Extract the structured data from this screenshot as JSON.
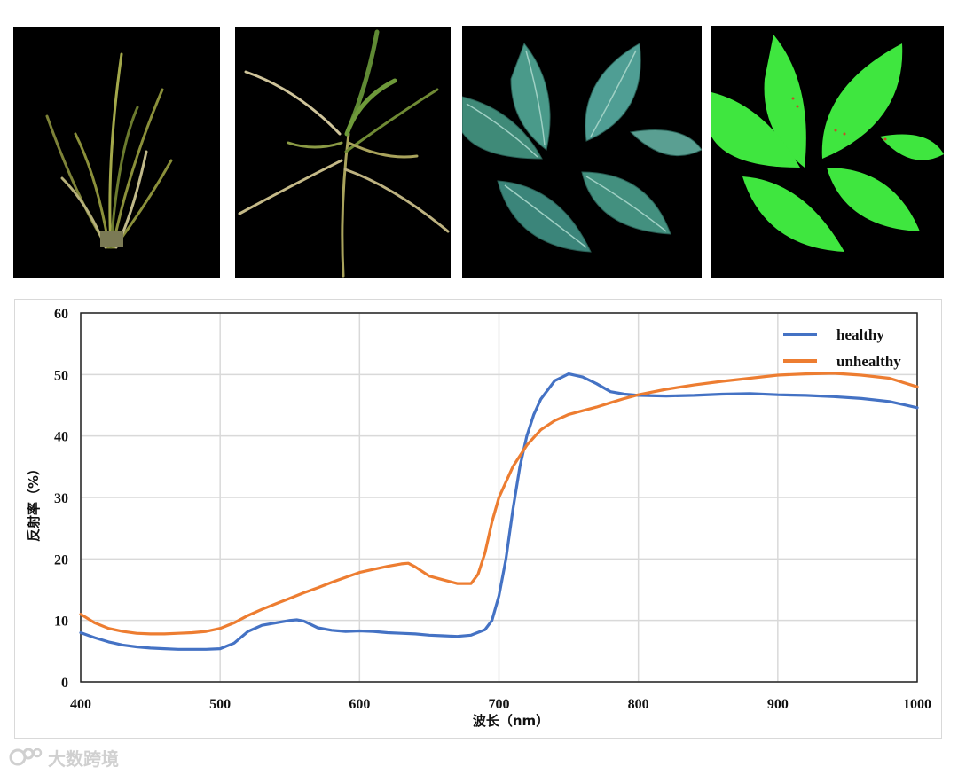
{
  "photos": [
    {
      "name": "rice-plant-healthy"
    },
    {
      "name": "rice-plant-unhealthy"
    },
    {
      "name": "leaves-rgb"
    },
    {
      "name": "leaves-segmented"
    }
  ],
  "watermark": {
    "text": "大数跨境"
  },
  "chart_data": {
    "type": "line",
    "title": "",
    "xlabel": "波长（nm）",
    "ylabel": "反射率（%）",
    "xlim": [
      400,
      1000
    ],
    "ylim": [
      0,
      60
    ],
    "xticks": [
      "400",
      "500",
      "600",
      "700",
      "800",
      "900",
      "1000"
    ],
    "yticks": [
      "0",
      "10",
      "20",
      "30",
      "40",
      "50",
      "60"
    ],
    "grid": true,
    "legend_position": "top-right",
    "series": [
      {
        "name": "healthy",
        "color": "#4472C4",
        "x": [
          400,
          410,
          420,
          430,
          440,
          450,
          460,
          470,
          480,
          490,
          500,
          510,
          520,
          530,
          540,
          550,
          555,
          560,
          570,
          580,
          590,
          600,
          610,
          620,
          630,
          640,
          650,
          660,
          670,
          680,
          690,
          695,
          700,
          705,
          710,
          715,
          720,
          725,
          730,
          740,
          750,
          760,
          770,
          780,
          790,
          800,
          820,
          840,
          860,
          880,
          900,
          920,
          940,
          960,
          980,
          1000
        ],
        "values": [
          8,
          7.2,
          6.5,
          6,
          5.7,
          5.5,
          5.4,
          5.3,
          5.3,
          5.3,
          5.4,
          6.3,
          8.2,
          9.2,
          9.6,
          10,
          10.1,
          9.9,
          8.8,
          8.4,
          8.2,
          8.3,
          8.2,
          8.0,
          7.9,
          7.8,
          7.6,
          7.5,
          7.4,
          7.6,
          8.5,
          10,
          14,
          20,
          28,
          35,
          40,
          43.5,
          46,
          49,
          50.1,
          49.6,
          48.5,
          47.2,
          46.8,
          46.6,
          46.5,
          46.6,
          46.8,
          46.9,
          46.7,
          46.6,
          46.4,
          46.1,
          45.6,
          44.6
        ]
      },
      {
        "name": "unhealthy",
        "color": "#ED7D31",
        "x": [
          400,
          410,
          420,
          430,
          440,
          450,
          460,
          470,
          480,
          490,
          500,
          510,
          520,
          530,
          540,
          550,
          560,
          570,
          580,
          590,
          600,
          610,
          620,
          630,
          635,
          640,
          650,
          660,
          670,
          680,
          685,
          690,
          695,
          700,
          710,
          720,
          730,
          740,
          750,
          760,
          770,
          780,
          790,
          800,
          820,
          840,
          860,
          880,
          900,
          920,
          940,
          960,
          980,
          1000
        ],
        "values": [
          11,
          9.6,
          8.7,
          8.2,
          7.9,
          7.8,
          7.8,
          7.9,
          8,
          8.2,
          8.7,
          9.6,
          10.8,
          11.8,
          12.7,
          13.6,
          14.5,
          15.3,
          16.2,
          17,
          17.8,
          18.3,
          18.8,
          19.2,
          19.3,
          18.7,
          17.2,
          16.6,
          16,
          16,
          17.5,
          21,
          26,
          30,
          35,
          38.5,
          41,
          42.5,
          43.5,
          44.1,
          44.7,
          45.4,
          46.1,
          46.7,
          47.6,
          48.3,
          48.9,
          49.4,
          49.9,
          50.1,
          50.2,
          49.9,
          49.4,
          48
        ]
      }
    ]
  }
}
